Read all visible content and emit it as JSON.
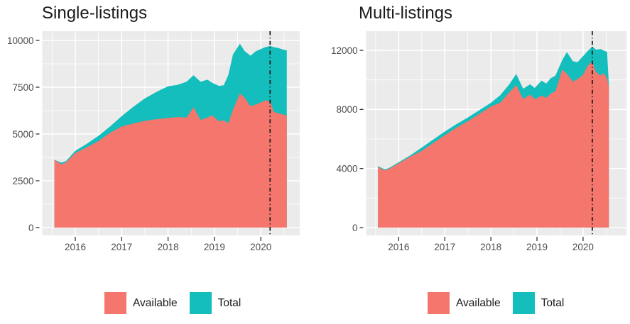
{
  "colors": {
    "available": "#F4766C",
    "total": "#13BEBD",
    "panel_bg": "#EBEBEB",
    "gridline": "#FFFFFF",
    "vline": "#1A1A1A",
    "tick_mark": "#333333",
    "tick_text": "#4D4D4D",
    "title_text": "#1A1A1A"
  },
  "chart_data": [
    {
      "type": "area",
      "title": "Single-listings",
      "legend_position": "bottom",
      "grid": true,
      "x": [
        2015.55,
        2015.7,
        2015.8,
        2016.0,
        2016.25,
        2016.5,
        2016.75,
        2017.0,
        2017.25,
        2017.5,
        2017.75,
        2018.0,
        2018.2,
        2018.4,
        2018.55,
        2018.7,
        2018.85,
        2018.95,
        2019.1,
        2019.2,
        2019.3,
        2019.4,
        2019.55,
        2019.65,
        2019.78,
        2019.88,
        2020.0,
        2020.1,
        2020.2,
        2020.28,
        2020.38,
        2020.45,
        2020.52,
        2020.56
      ],
      "series": [
        {
          "name": "Total",
          "color_key": "total",
          "values": [
            3620,
            3470,
            3550,
            4100,
            4480,
            4900,
            5400,
            5950,
            6450,
            6900,
            7250,
            7550,
            7620,
            7790,
            8140,
            7790,
            7900,
            7740,
            7570,
            7600,
            8150,
            9250,
            9820,
            9430,
            9180,
            9400,
            9540,
            9640,
            9700,
            9640,
            9590,
            9530,
            9490,
            9470
          ]
        },
        {
          "name": "Available",
          "color_key": "available",
          "values": [
            3620,
            3380,
            3480,
            3980,
            4290,
            4620,
            5060,
            5400,
            5560,
            5700,
            5790,
            5850,
            5910,
            5880,
            6430,
            5750,
            5880,
            5990,
            5680,
            5730,
            5570,
            6300,
            7170,
            6930,
            6480,
            6560,
            6680,
            6800,
            6740,
            6180,
            6100,
            6060,
            6010,
            5980
          ]
        }
      ],
      "xlim": [
        2015.288,
        2020.839
      ],
      "ylim": [
        -417,
        10492
      ],
      "yticks": [
        0,
        2500,
        5000,
        7500,
        10000
      ],
      "ytick_labels": [
        "0",
        "2500",
        "5000",
        "7500",
        "10000"
      ],
      "yminor": [
        1250,
        3750,
        6250,
        8750
      ],
      "xticks": [
        2016,
        2017,
        2018,
        2019,
        2020
      ],
      "xtick_labels": [
        "2016",
        "2017",
        "2018",
        "2019",
        "2020"
      ],
      "xminor": [
        2015.5,
        2016.5,
        2017.5,
        2018.5,
        2019.5,
        2020.5
      ],
      "vline_x": 2020.2,
      "legend": [
        {
          "label": "Available",
          "color_key": "available"
        },
        {
          "label": "Total",
          "color_key": "total"
        }
      ]
    },
    {
      "type": "area",
      "title": "Multi-listings",
      "legend_position": "bottom",
      "grid": true,
      "x": [
        2015.55,
        2015.7,
        2015.8,
        2016.0,
        2016.25,
        2016.5,
        2016.75,
        2017.0,
        2017.25,
        2017.5,
        2017.75,
        2018.0,
        2018.2,
        2018.4,
        2018.55,
        2018.7,
        2018.85,
        2018.95,
        2019.1,
        2019.2,
        2019.3,
        2019.4,
        2019.55,
        2019.65,
        2019.78,
        2019.88,
        2020.0,
        2020.1,
        2020.2,
        2020.28,
        2020.38,
        2020.45,
        2020.52,
        2020.56
      ],
      "series": [
        {
          "name": "Total",
          "color_key": "total",
          "values": [
            4150,
            3950,
            4050,
            4420,
            4880,
            5420,
            5960,
            6500,
            7000,
            7450,
            7950,
            8450,
            8950,
            9700,
            10400,
            9400,
            9700,
            9450,
            9950,
            9750,
            10120,
            10280,
            11350,
            11880,
            11260,
            11200,
            11600,
            11950,
            12250,
            12050,
            12080,
            11980,
            11900,
            9650
          ]
        },
        {
          "name": "Available",
          "color_key": "available",
          "values": [
            4100,
            3880,
            3990,
            4350,
            4800,
            5200,
            5720,
            6250,
            6760,
            7200,
            7700,
            8200,
            8450,
            9150,
            9650,
            8700,
            9000,
            8700,
            8930,
            8780,
            9080,
            9240,
            10700,
            10400,
            9890,
            10050,
            10350,
            10950,
            11230,
            10520,
            10300,
            10450,
            10120,
            9480
          ]
        }
      ],
      "xlim": [
        2015.294,
        2020.941
      ],
      "ylim": [
        -528,
        13296
      ],
      "yticks": [
        0,
        4000,
        8000,
        12000
      ],
      "ytick_labels": [
        "0",
        "4000",
        "8000",
        "12000"
      ],
      "yminor": [
        2000,
        6000,
        10000
      ],
      "xticks": [
        2016,
        2017,
        2018,
        2019,
        2020
      ],
      "xtick_labels": [
        "2016",
        "2017",
        "2018",
        "2019",
        "2020"
      ],
      "xminor": [
        2015.5,
        2016.5,
        2017.5,
        2018.5,
        2019.5,
        2020.5
      ],
      "vline_x": 2020.2,
      "legend": [
        {
          "label": "Available",
          "color_key": "available"
        },
        {
          "label": "Total",
          "color_key": "total"
        }
      ]
    }
  ]
}
